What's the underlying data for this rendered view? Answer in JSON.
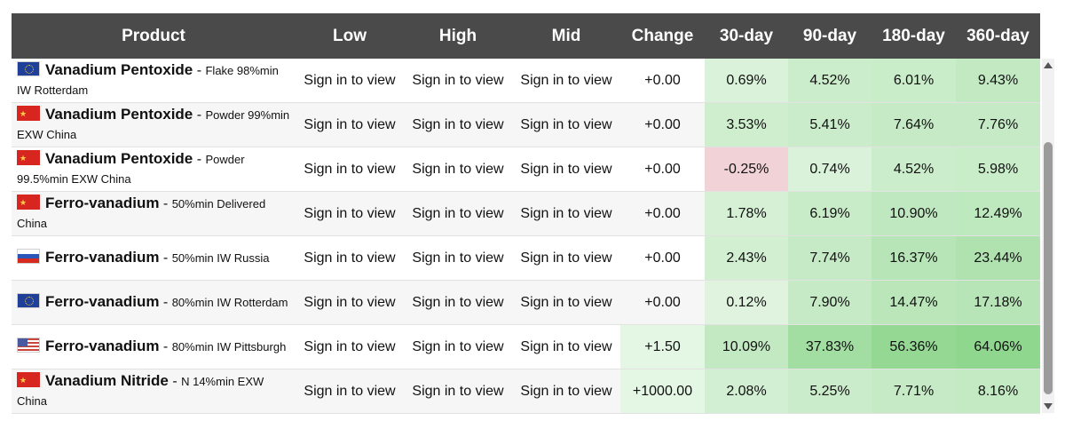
{
  "colors": {
    "header_bg": "#4a4a4a",
    "positive_light": "#e4f6e4",
    "positive_strong": "#7fd17f",
    "negative": "#f1d2d6"
  },
  "table": {
    "headers": [
      "Product",
      "Low",
      "High",
      "Mid",
      "Change",
      "30-day",
      "90-day",
      "180-day",
      "360-day"
    ],
    "rows": [
      {
        "flag": "eu",
        "name": "Vanadium Pentoxide",
        "desc": "Flake 98%min IW Rotterdam",
        "low": "Sign in to view",
        "high": "Sign in to view",
        "mid": "Sign in to view",
        "change": "+0.00",
        "d30": "0.69%",
        "d90": "4.52%",
        "d180": "6.01%",
        "d360": "9.43%"
      },
      {
        "flag": "cn",
        "name": "Vanadium Pentoxide",
        "desc": "Powder 99%min EXW China",
        "low": "Sign in to view",
        "high": "Sign in to view",
        "mid": "Sign in to view",
        "change": "+0.00",
        "d30": "3.53%",
        "d90": "5.41%",
        "d180": "7.64%",
        "d360": "7.76%"
      },
      {
        "flag": "cn",
        "name": "Vanadium Pentoxide",
        "desc": "Powder 99.5%min EXW China",
        "low": "Sign in to view",
        "high": "Sign in to view",
        "mid": "Sign in to view",
        "change": "+0.00",
        "d30": "-0.25%",
        "d90": "0.74%",
        "d180": "4.52%",
        "d360": "5.98%"
      },
      {
        "flag": "cn",
        "name": "Ferro-vanadium",
        "desc": "50%min Delivered China",
        "low": "Sign in to view",
        "high": "Sign in to view",
        "mid": "Sign in to view",
        "change": "+0.00",
        "d30": "1.78%",
        "d90": "6.19%",
        "d180": "10.90%",
        "d360": "12.49%"
      },
      {
        "flag": "ru",
        "name": "Ferro-vanadium",
        "desc": "50%min IW Russia",
        "low": "Sign in to view",
        "high": "Sign in to view",
        "mid": "Sign in to view",
        "change": "+0.00",
        "d30": "2.43%",
        "d90": "7.74%",
        "d180": "16.37%",
        "d360": "23.44%"
      },
      {
        "flag": "eu",
        "name": "Ferro-vanadium",
        "desc": "80%min IW Rotterdam",
        "low": "Sign in to view",
        "high": "Sign in to view",
        "mid": "Sign in to view",
        "change": "+0.00",
        "d30": "0.12%",
        "d90": "7.90%",
        "d180": "14.47%",
        "d360": "17.18%"
      },
      {
        "flag": "us",
        "name": "Ferro-vanadium",
        "desc": "80%min IW Pittsburgh",
        "low": "Sign in to view",
        "high": "Sign in to view",
        "mid": "Sign in to view",
        "change": "+1.50",
        "d30": "10.09%",
        "d90": "37.83%",
        "d180": "56.36%",
        "d360": "64.06%"
      },
      {
        "flag": "cn",
        "name": "Vanadium Nitride",
        "desc": "N 14%min EXW China",
        "low": "Sign in to view",
        "high": "Sign in to view",
        "mid": "Sign in to view",
        "change": "+1000.00",
        "d30": "2.08%",
        "d90": "5.25%",
        "d180": "7.71%",
        "d360": "8.16%"
      }
    ]
  }
}
